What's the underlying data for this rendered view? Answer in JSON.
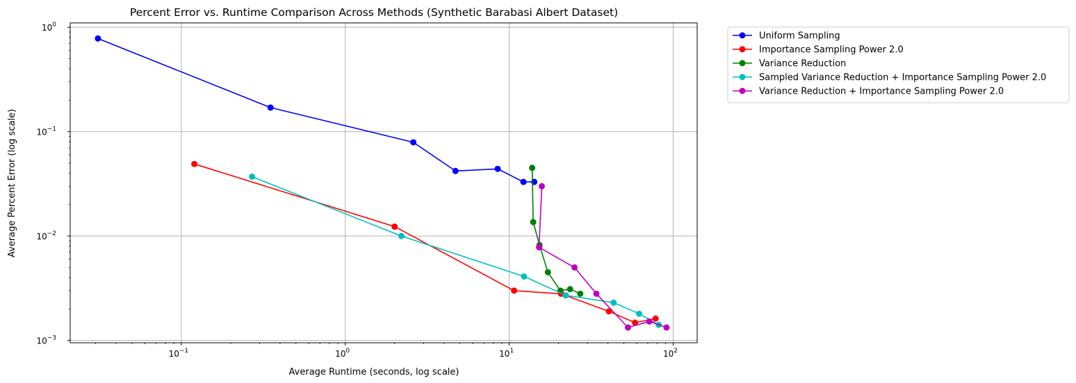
{
  "chart_data": {
    "type": "line",
    "title": "Percent Error vs. Runtime Comparison Across Methods (Synthetic Barabasi Albert Dataset)",
    "xlabel": "Average Runtime (seconds, log scale)",
    "ylabel": "Average Percent Error (log scale)",
    "x_scale": "log",
    "y_scale": "log",
    "xlim": [
      0.021,
      140
    ],
    "ylim": [
      0.00095,
      1.1
    ],
    "x_ticks": [
      {
        "value": 0.1,
        "base": "10",
        "exp": "−1"
      },
      {
        "value": 1,
        "base": "10",
        "exp": "0"
      },
      {
        "value": 10,
        "base": "10",
        "exp": "1"
      },
      {
        "value": 100,
        "base": "10",
        "exp": "2"
      }
    ],
    "y_ticks": [
      {
        "value": 0.001,
        "base": "10",
        "exp": "−3"
      },
      {
        "value": 0.01,
        "base": "10",
        "exp": "−2"
      },
      {
        "value": 0.1,
        "base": "10",
        "exp": "−1"
      },
      {
        "value": 1,
        "base": "10",
        "exp": "0"
      }
    ],
    "grid": true,
    "legend_position": "outside-top-right",
    "series": [
      {
        "name": "Uniform Sampling",
        "color": "#0000ff",
        "marker": "circle",
        "x": [
          0.031,
          0.35,
          2.6,
          4.7,
          8.5,
          12.2,
          14.2
        ],
        "y": [
          0.78,
          0.17,
          0.079,
          0.042,
          0.044,
          0.033,
          0.033
        ]
      },
      {
        "name": "Importance Sampling Power 2.0",
        "color": "#ff0000",
        "marker": "circle",
        "x": [
          0.12,
          2.0,
          10.7,
          20.7,
          40.5,
          58.5,
          78.0
        ],
        "y": [
          0.049,
          0.0123,
          0.003,
          0.0028,
          0.0019,
          0.00148,
          0.00162
        ]
      },
      {
        "name": "Variance Reduction",
        "color": "#008000",
        "marker": "circle",
        "x": [
          13.8,
          14.0,
          15.3,
          17.2,
          20.5,
          23.5,
          27.1
        ],
        "y": [
          0.045,
          0.0136,
          0.0082,
          0.0045,
          0.003,
          0.0031,
          0.0028
        ]
      },
      {
        "name": "Sampled Variance Reduction + Importance Sampling Power 2.0",
        "color": "#00bfbf",
        "marker": "circle",
        "x": [
          0.27,
          2.2,
          12.3,
          22.1,
          43.3,
          62.0,
          81.5
        ],
        "y": [
          0.037,
          0.01,
          0.0041,
          0.0027,
          0.0023,
          0.0018,
          0.00141
        ]
      },
      {
        "name": "Variance Reduction + Importance Sampling Power 2.0",
        "color": "#bf00bf",
        "marker": "circle",
        "x": [
          15.8,
          15.2,
          25.0,
          34.0,
          53.0,
          71.5,
          91.0
        ],
        "y": [
          0.03,
          0.0078,
          0.005,
          0.0028,
          0.00133,
          0.00152,
          0.00133
        ]
      }
    ]
  }
}
